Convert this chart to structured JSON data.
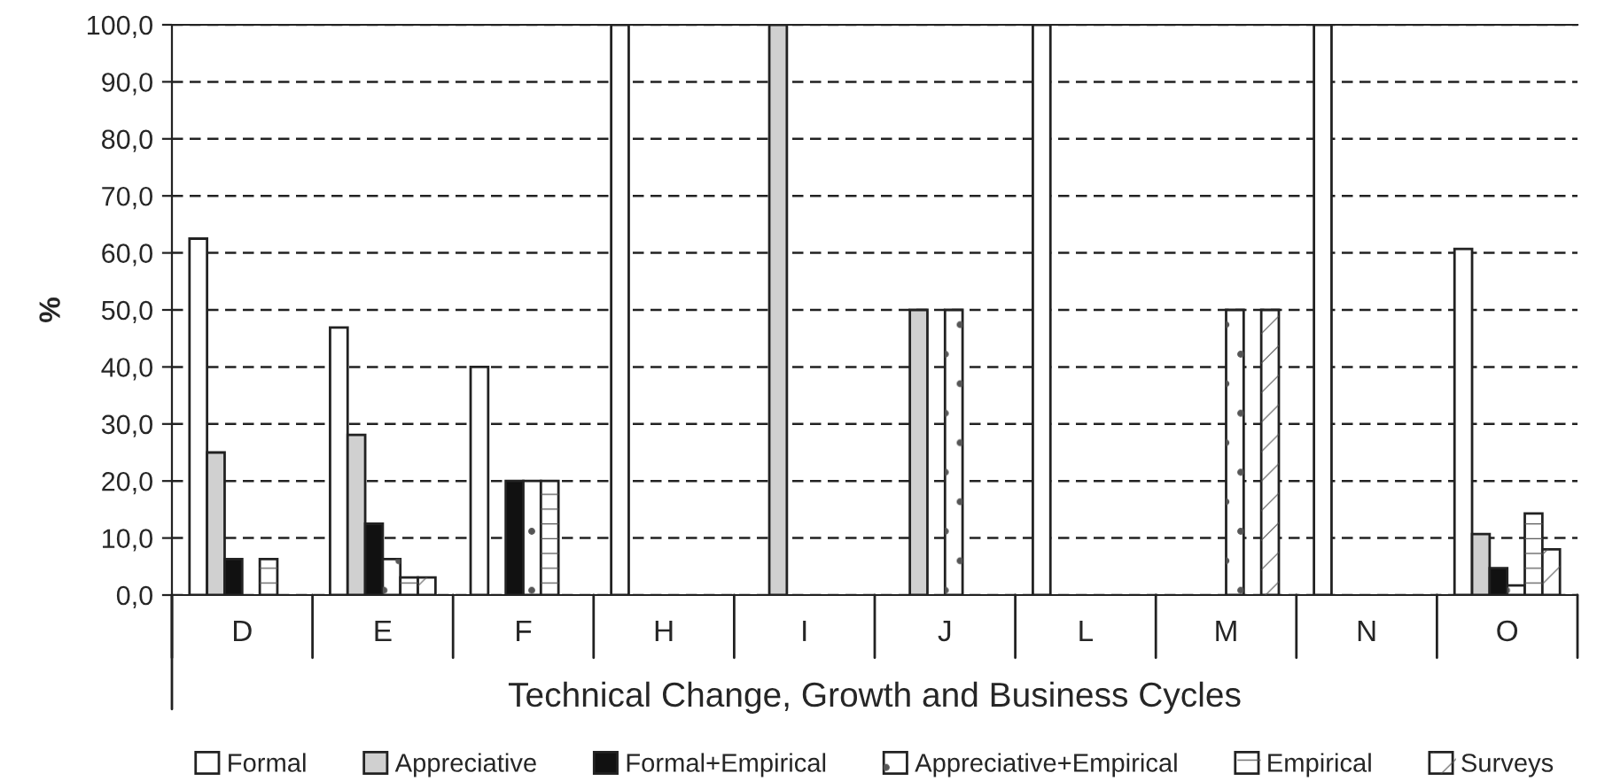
{
  "chart_data": {
    "type": "bar",
    "xlabel": "Technical Change, Growth and Business Cycles",
    "ylabel": "%",
    "categories": [
      "D",
      "E",
      "F",
      "H",
      "I",
      "J",
      "L",
      "M",
      "N",
      "O"
    ],
    "series": [
      {
        "name": "Formal",
        "color": "#ffffff",
        "values": [
          62.5,
          46.9,
          40.0,
          100.0,
          null,
          null,
          100.0,
          null,
          100.0,
          60.7
        ]
      },
      {
        "name": "Appreciative",
        "color": "#d0d0d0",
        "values": [
          25.0,
          28.1,
          null,
          null,
          100.0,
          50.0,
          null,
          null,
          null,
          10.7
        ]
      },
      {
        "name": "Formal+Empirical",
        "color": "#111111",
        "values": [
          6.3,
          12.5,
          20.0,
          null,
          null,
          null,
          null,
          null,
          null,
          4.7
        ]
      },
      {
        "name": "Appreciative+Empirical",
        "color": "#ffffff",
        "values": [
          null,
          6.3,
          20.0,
          null,
          null,
          50.0,
          null,
          50.0,
          null,
          1.7
        ]
      },
      {
        "name": "Empirical",
        "color": "#ffffff",
        "values": [
          6.3,
          3.1,
          20.0,
          null,
          null,
          null,
          null,
          null,
          null,
          14.3
        ]
      },
      {
        "name": "Surveys",
        "color": "#ffffff",
        "values": [
          null,
          3.1,
          null,
          null,
          null,
          null,
          null,
          50.0,
          null,
          8.0
        ]
      }
    ],
    "ylim": [
      0,
      100
    ],
    "yticks": [
      {
        "value": 0,
        "label": "0,0"
      },
      {
        "value": 10,
        "label": "10,0"
      },
      {
        "value": 20,
        "label": "20,0"
      },
      {
        "value": 30,
        "label": "30,0"
      },
      {
        "value": 40,
        "label": "40,0"
      },
      {
        "value": 50,
        "label": "50,0"
      },
      {
        "value": 60,
        "label": "60,0"
      },
      {
        "value": 70,
        "label": "70,0"
      },
      {
        "value": 80,
        "label": "80,0"
      },
      {
        "value": 90,
        "label": "90,0"
      },
      {
        "value": 100,
        "label": "100,0"
      }
    ],
    "grid": "y",
    "legend": "bottom"
  }
}
